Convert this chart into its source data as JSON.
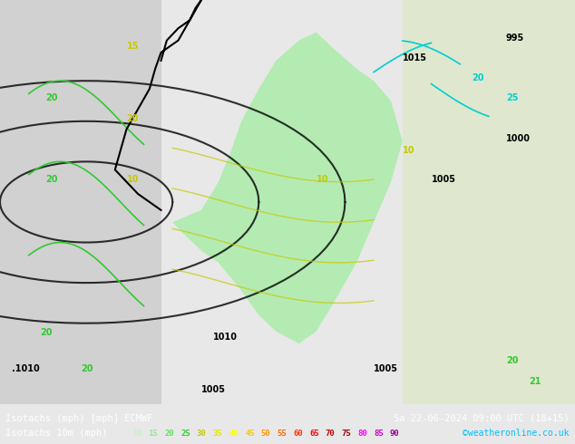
{
  "fig_width": 6.34,
  "fig_height": 4.9,
  "dpi": 100,
  "bg_color": "#e8e8e8",
  "map_bg_color": "#d4e8d4",
  "bottom_bar_color": "#000000",
  "bottom_bg": "#1a1a2e",
  "title_left": "Isotachs (mph) [mph] ECMWF",
  "title_right": "Sa 22-06-2024 09:00 UTC (18+15)",
  "legend_label": "Isotachs 10m (mph)",
  "watermark": "©weatheronline.co.uk",
  "legend_values": [
    10,
    15,
    20,
    25,
    30,
    35,
    40,
    45,
    50,
    55,
    60,
    65,
    70,
    75,
    80,
    85,
    90
  ],
  "legend_colors": [
    "#c8f0c8",
    "#96e696",
    "#64dc64",
    "#32c832",
    "#c8c800",
    "#e6e600",
    "#ffff00",
    "#ffc800",
    "#ff9600",
    "#ff6400",
    "#ff3200",
    "#ff0000",
    "#c80000",
    "#960000",
    "#ff00ff",
    "#c800c8",
    "#960096"
  ],
  "bottom_text_color": "#ffffff",
  "watermark_color": "#00bfff"
}
